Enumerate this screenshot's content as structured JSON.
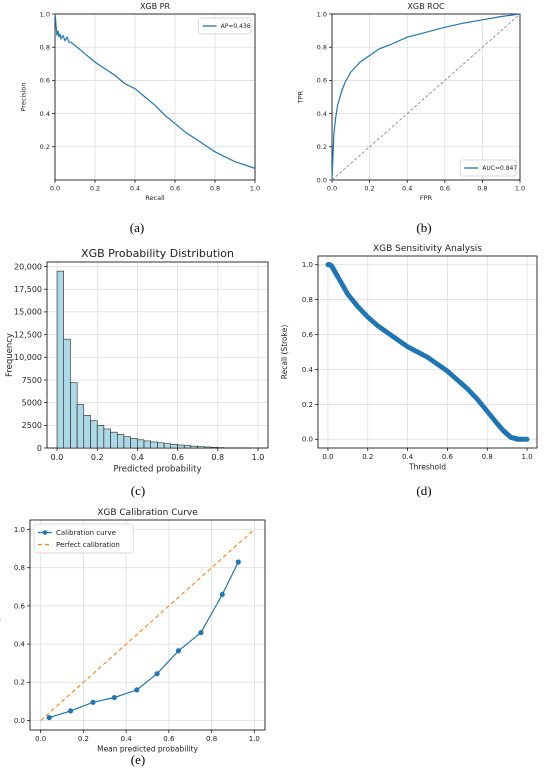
{
  "chart_data": [
    {
      "id": "a",
      "type": "line",
      "title": "XGB PR",
      "xlabel": "Recall",
      "ylabel": "Precision",
      "xlim": [
        0,
        1
      ],
      "ylim": [
        0,
        1
      ],
      "xticks": [
        "0.0",
        "0.2",
        "0.4",
        "0.6",
        "0.8",
        "1.0"
      ],
      "yticks": [
        "0.2",
        "0.4",
        "0.6",
        "0.8",
        "1.0"
      ],
      "grid": true,
      "legend_position": "top-right",
      "color": "#1f77b4",
      "series": [
        {
          "name": "AP=0.436",
          "x": [
            0.0,
            0.003,
            0.006,
            0.01,
            0.015,
            0.02,
            0.025,
            0.03,
            0.04,
            0.05,
            0.06,
            0.07,
            0.08,
            0.1,
            0.15,
            0.2,
            0.25,
            0.3,
            0.35,
            0.4,
            0.45,
            0.5,
            0.55,
            0.6,
            0.65,
            0.7,
            0.75,
            0.8,
            0.85,
            0.9,
            0.95,
            1.0
          ],
          "y": [
            1.0,
            0.97,
            0.92,
            0.87,
            0.9,
            0.86,
            0.88,
            0.85,
            0.87,
            0.84,
            0.86,
            0.83,
            0.83,
            0.81,
            0.76,
            0.71,
            0.67,
            0.63,
            0.58,
            0.55,
            0.5,
            0.45,
            0.39,
            0.34,
            0.29,
            0.25,
            0.21,
            0.17,
            0.14,
            0.11,
            0.09,
            0.07
          ]
        }
      ]
    },
    {
      "id": "b",
      "type": "line",
      "title": "XGB ROC",
      "xlabel": "FPR",
      "ylabel": "TPR",
      "xlim": [
        0,
        1
      ],
      "ylim": [
        0,
        1
      ],
      "xticks": [
        "0.0",
        "0.2",
        "0.4",
        "0.6",
        "0.8",
        "1.0"
      ],
      "yticks": [
        "0.0",
        "0.2",
        "0.4",
        "0.6",
        "0.8",
        "1.0"
      ],
      "grid": true,
      "legend_position": "bottom-right",
      "color": "#1f77b4",
      "diagonal_color": "#808080",
      "series": [
        {
          "name": "AUC=0.847",
          "x": [
            0.0,
            0.01,
            0.02,
            0.03,
            0.05,
            0.07,
            0.1,
            0.15,
            0.2,
            0.25,
            0.3,
            0.4,
            0.5,
            0.6,
            0.7,
            0.8,
            0.9,
            1.0
          ],
          "y": [
            0.0,
            0.28,
            0.38,
            0.45,
            0.53,
            0.59,
            0.65,
            0.71,
            0.75,
            0.79,
            0.81,
            0.86,
            0.89,
            0.92,
            0.945,
            0.965,
            0.985,
            1.0
          ]
        }
      ]
    },
    {
      "id": "c",
      "type": "bar",
      "title": "XGB Probability Distribution",
      "xlabel": "Predicted probability",
      "ylabel": "Frequency",
      "xlim": [
        -0.05,
        1.05
      ],
      "ylim": [
        0,
        20500
      ],
      "xticks": [
        "0.0",
        "0.2",
        "0.4",
        "0.6",
        "0.8",
        "1.0"
      ],
      "yticks": [
        "0",
        "2500",
        "5000",
        "7500",
        "10000",
        "12500",
        "15000",
        "17500",
        "20000"
      ],
      "ytick_labels": [
        "0",
        "2500",
        "5000",
        "7500",
        "10,000",
        "12,500",
        "15,000",
        "17,500",
        "20,000"
      ],
      "grid": true,
      "bar_color": "#add8e6",
      "bin_width": 0.0333,
      "bin_start": 0.0,
      "values": [
        19500,
        12000,
        7200,
        4800,
        3600,
        3000,
        2500,
        2100,
        1750,
        1500,
        1250,
        1050,
        900,
        780,
        670,
        570,
        480,
        400,
        330,
        270,
        210,
        160,
        110,
        70,
        40,
        20,
        8,
        3,
        1,
        0
      ]
    },
    {
      "id": "d",
      "type": "scatter",
      "title": "XGB Sensitivity Analysis",
      "xlabel": "Threshold",
      "ylabel": "Recall (Stroke)",
      "xlim": [
        -0.05,
        1.05
      ],
      "ylim": [
        -0.05,
        1.05
      ],
      "xticks": [
        "0.0",
        "0.2",
        "0.4",
        "0.6",
        "0.8",
        "1.0"
      ],
      "yticks": [
        "0.0",
        "0.2",
        "0.4",
        "0.6",
        "0.8",
        "1.0"
      ],
      "grid": true,
      "color": "#1f77b4",
      "series": [
        {
          "name": "",
          "x": [
            0.0,
            0.01,
            0.02,
            0.03,
            0.05,
            0.08,
            0.1,
            0.15,
            0.2,
            0.25,
            0.3,
            0.35,
            0.4,
            0.45,
            0.5,
            0.55,
            0.6,
            0.65,
            0.7,
            0.75,
            0.8,
            0.85,
            0.88,
            0.9,
            0.92,
            0.94,
            0.95,
            0.97,
            1.0
          ],
          "y": [
            1.0,
            1.0,
            0.99,
            0.97,
            0.93,
            0.87,
            0.83,
            0.76,
            0.7,
            0.65,
            0.61,
            0.57,
            0.53,
            0.5,
            0.47,
            0.43,
            0.39,
            0.34,
            0.29,
            0.23,
            0.16,
            0.09,
            0.05,
            0.03,
            0.01,
            0.005,
            0.0,
            0.0,
            0.0
          ]
        }
      ]
    },
    {
      "id": "e",
      "type": "line",
      "title": "XGB Calibration Curve",
      "xlabel": "Mean predicted probability",
      "ylabel": "Fraction of positives",
      "xlim": [
        -0.05,
        1.05
      ],
      "ylim": [
        -0.05,
        1.05
      ],
      "xticks": [
        "0.0",
        "0.2",
        "0.4",
        "0.6",
        "0.8",
        "1.0"
      ],
      "yticks": [
        "0.0",
        "0.2",
        "0.4",
        "0.6",
        "0.8",
        "1.0"
      ],
      "grid": true,
      "legend_position": "top-left",
      "series": [
        {
          "name": "Calibration curve",
          "color": "#1f77b4",
          "x": [
            0.04,
            0.14,
            0.245,
            0.345,
            0.45,
            0.545,
            0.645,
            0.75,
            0.85,
            0.925
          ],
          "y": [
            0.015,
            0.05,
            0.095,
            0.12,
            0.16,
            0.245,
            0.365,
            0.46,
            0.66,
            0.83
          ]
        },
        {
          "name": "Perfect calibration",
          "color": "#ff7f0e",
          "x": [
            0,
            1
          ],
          "y": [
            0,
            1
          ]
        }
      ]
    }
  ],
  "captions": {
    "a": "(a)",
    "b": "(b)",
    "c": "(c)",
    "d": "(d)",
    "e": "(e)"
  }
}
